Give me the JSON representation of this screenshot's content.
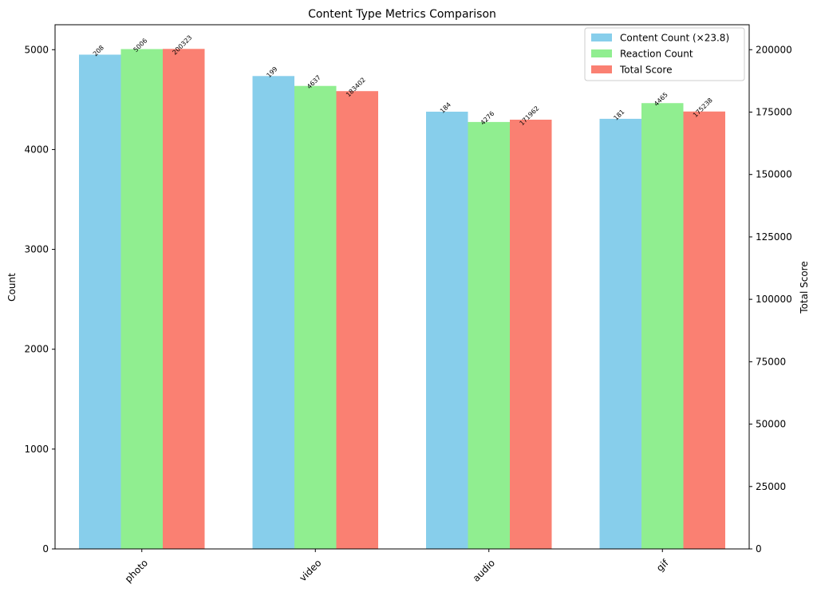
{
  "chart_data": {
    "type": "bar",
    "title": "Content Type Metrics Comparison",
    "categories": [
      "photo",
      "video",
      "audio",
      "gif"
    ],
    "ylabel": "Count",
    "y2label": "Total Score",
    "ylim": [
      0,
      5250
    ],
    "y2lim": [
      0,
      210000
    ],
    "yticks": [
      0,
      1000,
      2000,
      3000,
      4000,
      5000
    ],
    "y2ticks": [
      0,
      25000,
      50000,
      75000,
      100000,
      125000,
      150000,
      175000,
      200000
    ],
    "legend_position": "upper right",
    "grid": false,
    "series": [
      {
        "name": "Content Count (×23.8)",
        "axis": "left",
        "scale": 23.8,
        "values": [
          208,
          199,
          184,
          181
        ],
        "labels": [
          "208",
          "199",
          "184",
          "181"
        ],
        "color": "#87ceeb"
      },
      {
        "name": "Reaction Count",
        "axis": "left",
        "scale": 1,
        "values": [
          5006,
          4637,
          4276,
          4465
        ],
        "labels": [
          "5006",
          "4637",
          "4276",
          "4465"
        ],
        "color": "#90ee90"
      },
      {
        "name": "Total Score",
        "axis": "right",
        "scale": 1,
        "values": [
          200323,
          183402,
          171962,
          175238
        ],
        "labels": [
          "200323",
          "183402",
          "171962",
          "175238"
        ],
        "color": "#fa8072"
      }
    ]
  }
}
